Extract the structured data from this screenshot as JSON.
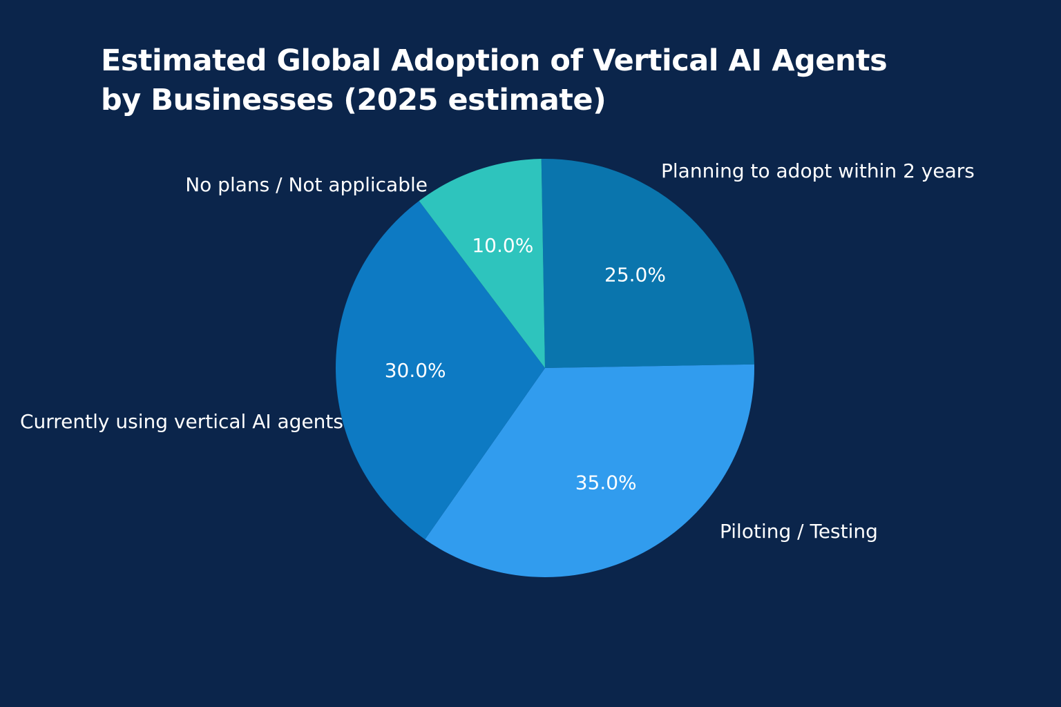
{
  "title_lines": [
    "Estimated Global Adoption of Vertical AI Agents",
    "by Businesses (2025 estimate)"
  ],
  "colors": {
    "background": "#0b254b",
    "text": "#ffffff"
  },
  "chart_data": {
    "type": "pie",
    "title": "Estimated Global Adoption of Vertical AI Agents by Businesses (2025 estimate)",
    "unit": "%",
    "start_angle_deg": -1,
    "direction": "clockwise",
    "slices": [
      {
        "label": "Planning to adopt within 2 years",
        "value": 25.0,
        "display": "25.0%",
        "color": "#0a75ad"
      },
      {
        "label": "Piloting / Testing",
        "value": 35.0,
        "display": "35.0%",
        "color": "#319cee"
      },
      {
        "label": "Currently using vertical AI agents",
        "value": 30.0,
        "display": "30.0%",
        "color": "#0d7ac3"
      },
      {
        "label": "No plans / Not applicable",
        "value": 10.0,
        "display": "10.0%",
        "color": "#2ec4bd"
      }
    ]
  }
}
